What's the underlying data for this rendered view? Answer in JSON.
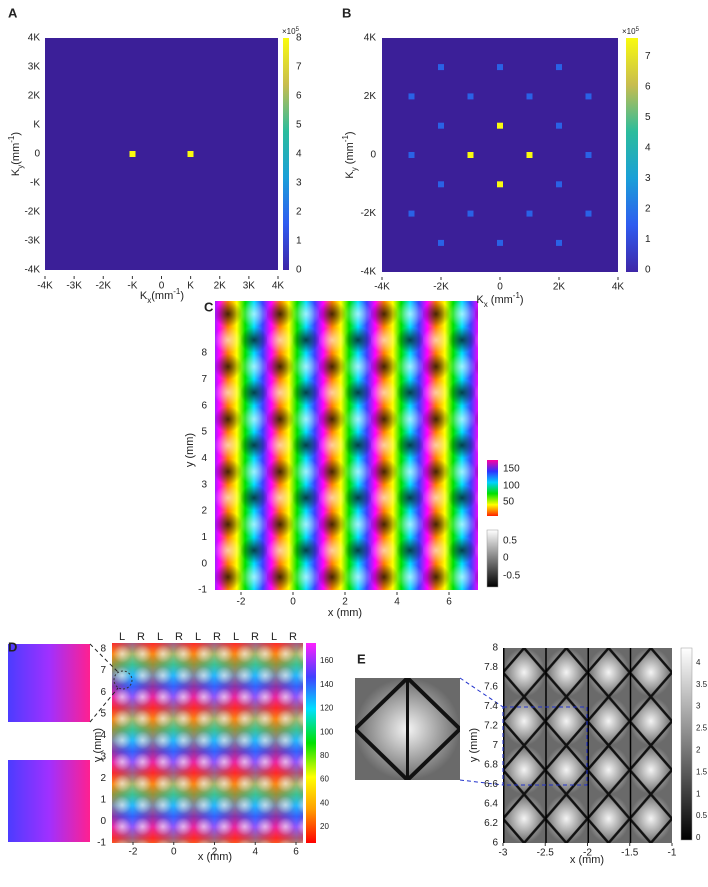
{
  "panels": [
    {
      "label": "A",
      "x_label": {
        "main": "K",
        "sub": "x",
        "unit": "(mm",
        "sup": "-1",
        "close": ")"
      },
      "y_label": {
        "main": "K",
        "sub": "y",
        "unit": "(mm",
        "sup": "-1",
        "close": ")"
      },
      "x_ticks": [
        "-4K",
        "-3K",
        "-2K",
        "-K",
        "0",
        "K",
        "2K",
        "3K",
        "4K"
      ],
      "y_ticks": [
        "-4K",
        "-3K",
        "-2K",
        "-K",
        "0",
        "K",
        "2K",
        "3K",
        "4K"
      ],
      "colorbar": {
        "exponent": "×10",
        "power": "5",
        "ticks": [
          "0",
          "1",
          "2",
          "3",
          "4",
          "5",
          "6",
          "7",
          "8"
        ]
      }
    },
    {
      "label": "B",
      "x_label": {
        "main": "K",
        "sub": "x",
        "unit": " (mm",
        "sup": "-1",
        "close": ")"
      },
      "y_label": {
        "main": "K",
        "sub": "y",
        "unit": " (mm",
        "sup": "-1",
        "close": ")"
      },
      "x_ticks": [
        "-4K",
        "-2K",
        "0",
        "2K",
        "4K"
      ],
      "y_ticks": [
        "-4K",
        "-2K",
        "0",
        "2K",
        "4K"
      ],
      "colorbar": {
        "exponent": "×10",
        "power": "5",
        "ticks": [
          "0",
          "1",
          "2",
          "3",
          "4",
          "5",
          "6",
          "7"
        ]
      }
    },
    {
      "label": "C",
      "x_label": "x (mm)",
      "y_label": "y (mm)",
      "x_ticks": [
        "-2",
        "0",
        "2",
        "4",
        "6"
      ],
      "y_ticks": [
        "-1",
        "0",
        "1",
        "2",
        "3",
        "4",
        "5",
        "6",
        "7",
        "8"
      ],
      "colorbars": [
        {
          "ticks": [
            "50",
            "100",
            "150"
          ]
        },
        {
          "ticks": [
            "-0.5",
            "0",
            "0.5"
          ]
        }
      ]
    },
    {
      "label": "D",
      "x_label": "x (mm)",
      "y_label": "y (mm)",
      "top_labels": [
        "L",
        "R",
        "L",
        "R",
        "L",
        "R",
        "L",
        "R",
        "L",
        "R"
      ],
      "x_ticks": [
        "-2",
        "0",
        "2",
        "4",
        "6"
      ],
      "y_ticks": [
        "-1",
        "0",
        "1",
        "2",
        "3",
        "4",
        "5",
        "6",
        "7",
        "8"
      ],
      "colorbar": {
        "ticks": [
          "20",
          "40",
          "60",
          "80",
          "100",
          "120",
          "140",
          "160"
        ]
      }
    },
    {
      "label": "E",
      "x_label": "x (mm)",
      "y_label": "y (mm)",
      "x_ticks": [
        "-3",
        "-2.5",
        "-2",
        "-1.5",
        "-1"
      ],
      "y_ticks": [
        "6",
        "6.2",
        "6.4",
        "6.6",
        "6.8",
        "7",
        "7.2",
        "7.4",
        "7.6",
        "7.8",
        "8"
      ],
      "colorbar": {
        "ticks": [
          "0",
          "0.5",
          "1",
          "1.5",
          "2",
          "2.5",
          "3",
          "3.5",
          "4"
        ]
      }
    }
  ]
}
